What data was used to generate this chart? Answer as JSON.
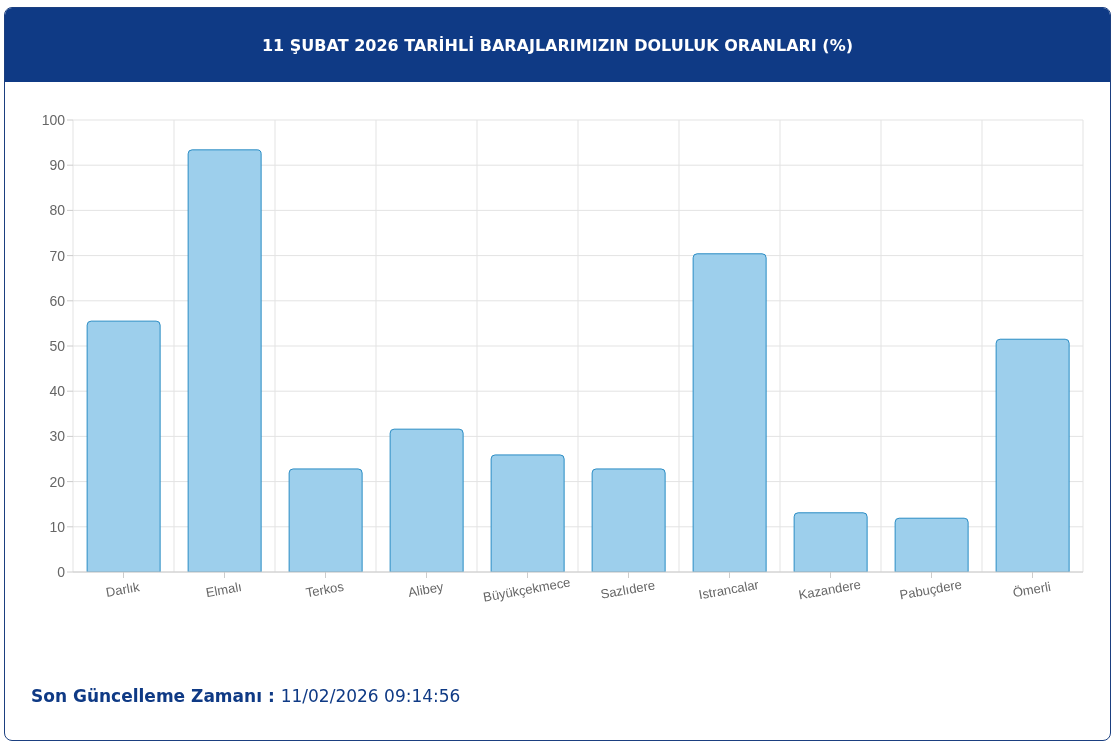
{
  "chart_data": {
    "type": "bar",
    "title": "11 ŞUBAT 2026 TARİHLİ BARAJLARIMIZIN DOLULUK ORANLARI (%)",
    "categories": [
      "Darlık",
      "Elmalı",
      "Terkos",
      "Alibey",
      "Büyükçekmece",
      "Sazlıdere",
      "Istrancalar",
      "Kazandere",
      "Pabuçdere",
      "Ömerli"
    ],
    "values": [
      55.5,
      93.4,
      22.8,
      31.6,
      25.9,
      22.8,
      70.4,
      13.1,
      11.9,
      51.5
    ],
    "color": "#9dcfec",
    "ylim": [
      0,
      100
    ],
    "yticks": [
      0,
      10,
      20,
      30,
      40,
      50,
      60,
      70,
      80,
      90,
      100
    ],
    "grid": true,
    "annotations": [
      "Son Güncelleme Zamanı :",
      "11/02/2026 09:14:56"
    ]
  }
}
